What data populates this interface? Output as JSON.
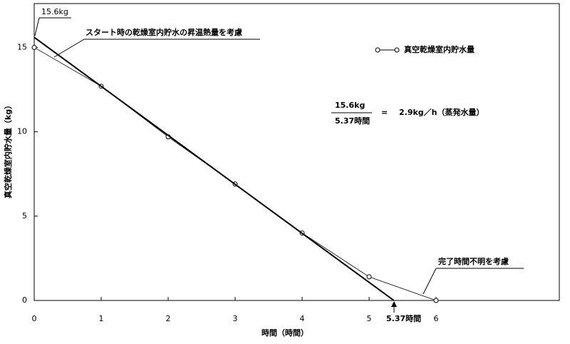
{
  "chart_data": {
    "type": "line",
    "x_label": "時間（時間）",
    "y_label": "真空乾燥室内貯水量（kg）",
    "series": [
      {
        "name": "真空乾燥室内貯水量",
        "color": "#000000",
        "x": [
          0,
          1,
          2,
          3,
          4,
          5,
          6
        ],
        "values": [
          15,
          12.7,
          9.7,
          6.9,
          4.0,
          1.4,
          0
        ]
      }
    ],
    "fit_line": {
      "x": [
        0,
        5.37
      ],
      "values": [
        15.6,
        0
      ],
      "color": "#000000"
    },
    "xlim": [
      0,
      7.84
    ],
    "ylim": [
      0,
      17.6
    ],
    "xticks": [
      0,
      1,
      2,
      3,
      4,
      5,
      6
    ],
    "yticks": [
      0,
      5,
      10,
      15
    ],
    "annotations": {
      "start_value": "15.6kg",
      "start_note": "スタート時の乾燥室内貯水の昇温熱量を考慮",
      "end_note": "完了時間不明を考慮",
      "end_time": "5.37時間"
    },
    "formula": {
      "numerator": "15.6kg",
      "denominator": "5.37時間",
      "equals": "=",
      "result": "2.9kg／h（蒸発水量）"
    },
    "legend": "upper right"
  }
}
